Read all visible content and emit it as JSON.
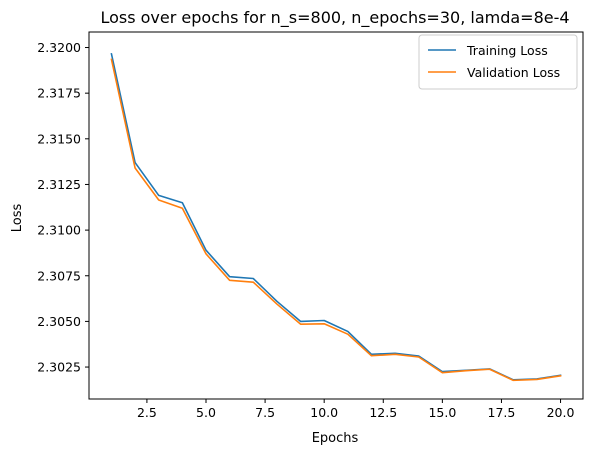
{
  "chart_data": {
    "type": "line",
    "title": "Loss over epochs for n_s=800, n_epochs=30, lamda=8e-4",
    "xlabel": "Epochs",
    "ylabel": "Loss",
    "xlim": [
      0.05,
      20.95
    ],
    "ylim": [
      2.30075,
      2.32085
    ],
    "xticks": [
      2.5,
      5.0,
      7.5,
      10.0,
      12.5,
      15.0,
      17.5,
      20.0
    ],
    "xtick_labels": [
      "2.5",
      "5.0",
      "7.5",
      "10.0",
      "12.5",
      "15.0",
      "17.5",
      "20.0"
    ],
    "yticks": [
      2.3025,
      2.305,
      2.3075,
      2.31,
      2.3125,
      2.315,
      2.3175,
      2.32
    ],
    "ytick_labels": [
      "2.3025",
      "2.3050",
      "2.3075",
      "2.3100",
      "2.3125",
      "2.3150",
      "2.3175",
      "2.3200"
    ],
    "grid": false,
    "legend_position": "upper right",
    "x": [
      1,
      2,
      3,
      4,
      5,
      6,
      7,
      8,
      9,
      10,
      11,
      12,
      13,
      14,
      15,
      16,
      17,
      18,
      19,
      20
    ],
    "series": [
      {
        "name": "Training Loss",
        "color": "#1f77b4",
        "values": [
          2.31965,
          2.3137,
          2.3119,
          2.3115,
          2.3089,
          2.30745,
          2.30735,
          2.3061,
          2.305,
          2.30505,
          2.30445,
          2.3032,
          2.30325,
          2.3031,
          2.30225,
          2.30232,
          2.3024,
          2.3018,
          2.30185,
          2.30205
        ]
      },
      {
        "name": "Validation Loss",
        "color": "#ff7f0e",
        "values": [
          2.31935,
          2.3134,
          2.31165,
          2.3112,
          2.3087,
          2.30725,
          2.30715,
          2.30595,
          2.30485,
          2.30487,
          2.3043,
          2.30312,
          2.3032,
          2.30305,
          2.30219,
          2.3023,
          2.30238,
          2.30177,
          2.30182,
          2.30202
        ]
      }
    ]
  }
}
